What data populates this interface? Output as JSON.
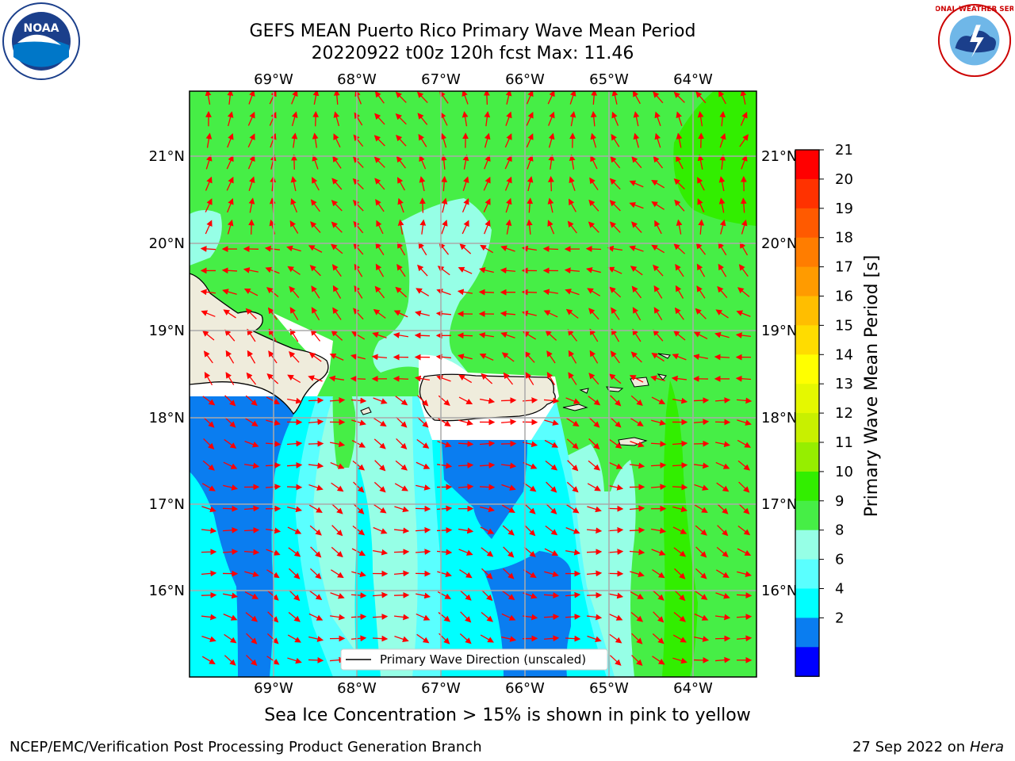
{
  "title": {
    "line1": "GEFS MEAN Puerto Rico Primary Wave Mean Period",
    "line2": "20220922 t00z 120h fcst   Max: 11.46"
  },
  "map": {
    "lon_labels": [
      "69°W",
      "68°W",
      "67°W",
      "66°W",
      "65°W",
      "64°W"
    ],
    "lat_labels": [
      "21°N",
      "20°N",
      "19°N",
      "18°N",
      "17°N",
      "16°N"
    ],
    "legend_label": "Primary Wave Direction (unscaled)",
    "land_color": "#efecdc",
    "arrow_color": "#ff0000"
  },
  "colorbar": {
    "label": "Primary Wave Mean Period [s]",
    "ticks": [
      "21",
      "20",
      "19",
      "18",
      "17",
      "16",
      "15",
      "14",
      "13",
      "12",
      "11",
      "10",
      "9",
      "8",
      "6",
      "4",
      "2"
    ],
    "colors": [
      "#ff0000",
      "#ff3200",
      "#ff5a00",
      "#ff7d00",
      "#ff9b00",
      "#ffbe00",
      "#ffdc00",
      "#ffff00",
      "#e5f800",
      "#c8f000",
      "#96ee00",
      "#32ee00",
      "#46ee46",
      "#96ffe6",
      "#5affff",
      "#00ffff",
      "#0a7df0",
      "#0000ff"
    ]
  },
  "notes": {
    "ice": "Sea Ice Concentration > 15% is shown in pink to yellow",
    "footer_left": "NCEP/EMC/Verification Post Processing Product Generation Branch",
    "footer_date": "27 Sep 2022 on",
    "footer_host": "Hera"
  },
  "logos": {
    "noaa_text": "NOAA",
    "nws_text": "NATIONAL WEATHER SERVICE"
  }
}
